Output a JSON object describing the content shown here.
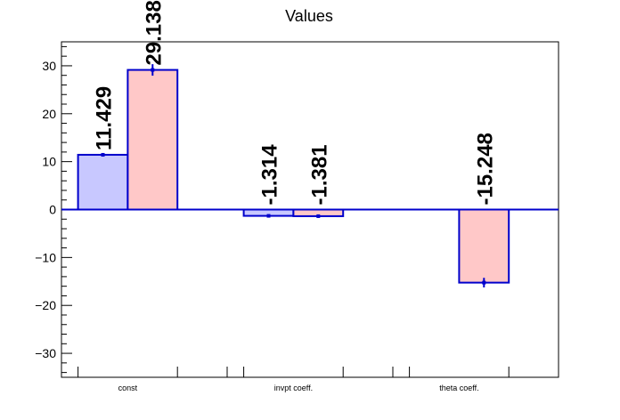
{
  "chart_data": {
    "type": "bar",
    "title": "Values",
    "xlabel": "",
    "ylabel": "",
    "categories": [
      "const",
      "invpt coeff.",
      "theta coeff."
    ],
    "series": [
      {
        "color": "#c8c8ff",
        "values": [
          11.429,
          -1.314,
          null
        ],
        "errors": [
          0.0,
          0.3,
          null
        ],
        "labels": [
          "11.429",
          "-1.314",
          ""
        ]
      },
      {
        "color": "#ffc8c8",
        "values": [
          29.138,
          -1.381,
          -15.248
        ],
        "errors": [
          1.2,
          0.3,
          1.0
        ],
        "labels": [
          "29.138",
          "-1.381",
          "-15.248"
        ]
      }
    ],
    "edge_color": "#0000cc",
    "ylim": [
      -35,
      35
    ],
    "yticks": [
      -30,
      -20,
      -10,
      0,
      10,
      20,
      30
    ],
    "grid": false,
    "legend": "none"
  }
}
